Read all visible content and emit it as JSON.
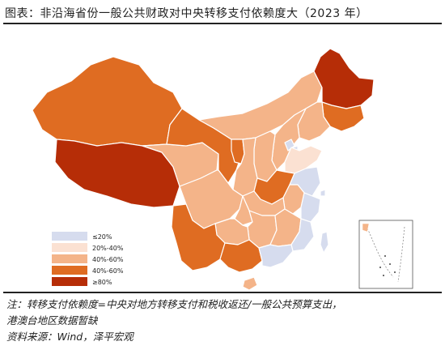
{
  "title": "图表：非沿海省份一般公共财政对中央转移支付依赖度大（2023 年）",
  "colors": {
    "le20": "#d6dcee",
    "p20_40": "#fbe1d2",
    "p40_60_light": "#f4b489",
    "p40_60_mid": "#df6c22",
    "ge80": "#b62d07",
    "border": "#ffffff"
  },
  "legend": [
    {
      "label": "≤20%",
      "color": "#d6dcee"
    },
    {
      "label": "20%-40%",
      "color": "#fbe1d2"
    },
    {
      "label": "40%-60%",
      "color": "#f4b489"
    },
    {
      "label": "40%-60%",
      "color": "#df6c22"
    },
    {
      "label": "≥80%",
      "color": "#b62d07"
    }
  ],
  "notes": {
    "line1": "注：转移支付依赖度=中央对地方转移支付和税收返还/一般公共预算支出，",
    "line2": "港澳台地区数据暂缺",
    "line3": "资料来源：Wind，泽平宏观"
  }
}
